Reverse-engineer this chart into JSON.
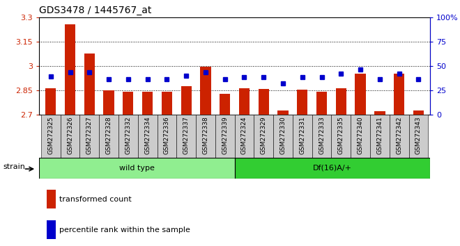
{
  "title": "GDS3478 / 1445767_at",
  "samples": [
    "GSM272325",
    "GSM272326",
    "GSM272327",
    "GSM272328",
    "GSM272332",
    "GSM272334",
    "GSM272336",
    "GSM272337",
    "GSM272338",
    "GSM272339",
    "GSM272324",
    "GSM272329",
    "GSM272330",
    "GSM272331",
    "GSM272333",
    "GSM272335",
    "GSM272340",
    "GSM272341",
    "GSM272342",
    "GSM272343"
  ],
  "red_values": [
    2.862,
    3.255,
    3.075,
    2.848,
    2.84,
    2.84,
    2.84,
    2.873,
    2.995,
    2.828,
    2.862,
    2.858,
    2.726,
    2.854,
    2.84,
    2.862,
    2.95,
    2.72,
    2.95,
    2.724
  ],
  "blue_values": [
    39,
    43,
    43,
    36,
    36,
    36,
    36,
    40,
    43,
    36,
    38,
    38,
    32,
    38,
    38,
    42,
    46,
    36,
    42,
    36
  ],
  "group_labels": [
    "wild type",
    "Df(16)A/+"
  ],
  "group_sizes": [
    10,
    10
  ],
  "ylim_left": [
    2.7,
    3.3
  ],
  "ylim_right": [
    0,
    100
  ],
  "yticks_left": [
    2.7,
    2.85,
    3.0,
    3.15,
    3.3
  ],
  "ytick_labels_left": [
    "2.7",
    "2.85",
    "3",
    "3.15",
    "3.3"
  ],
  "yticks_right": [
    0,
    25,
    50,
    75,
    100
  ],
  "ytick_labels_right": [
    "0",
    "25",
    "50",
    "75",
    "100%"
  ],
  "grid_values": [
    2.85,
    3.0,
    3.15
  ],
  "bar_color": "#cc2200",
  "dot_color": "#0000cc",
  "bar_bottom": 2.7,
  "wt_color": "#90ee90",
  "df_color": "#32cd32",
  "tick_bg_color": "#cccccc",
  "bar_width": 0.55,
  "dot_markersize": 4.5,
  "title_fontsize": 10,
  "tick_fontsize": 8,
  "sample_fontsize": 6.5,
  "legend_fontsize": 8
}
